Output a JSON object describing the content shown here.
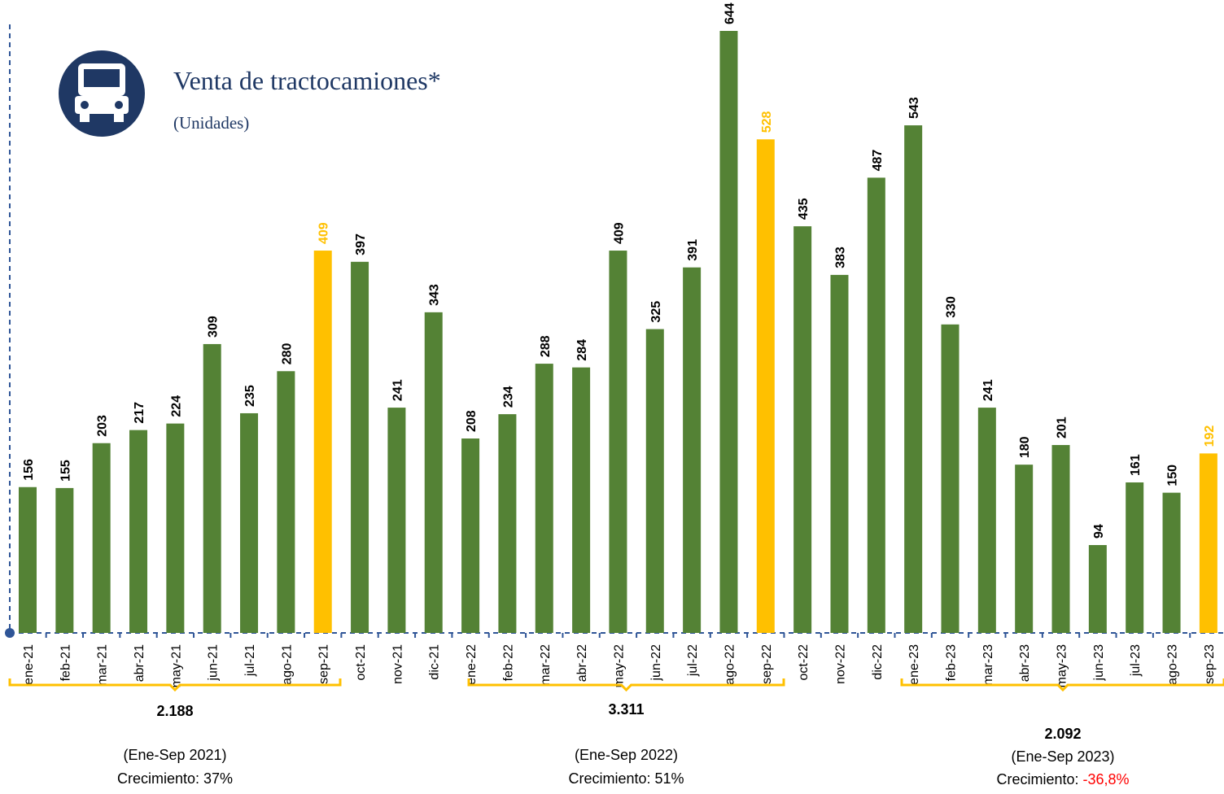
{
  "chart_data": {
    "type": "bar",
    "title": "Venta de tractocamiones*",
    "subtitle": "(Unidades)",
    "categories": [
      "ene-21",
      "feb-21",
      "mar-21",
      "abr-21",
      "may-21",
      "jun-21",
      "jul-21",
      "ago-21",
      "sep-21",
      "oct-21",
      "nov-21",
      "dic-21",
      "ene-22",
      "feb-22",
      "mar-22",
      "abr-22",
      "may-22",
      "jun-22",
      "jul-22",
      "ago-22",
      "sep-22",
      "oct-22",
      "nov-22",
      "dic-22",
      "ene-23",
      "feb-23",
      "mar-23",
      "abr-23",
      "may-23",
      "jun-23",
      "jul-23",
      "ago-23",
      "sep-23"
    ],
    "values": [
      156,
      155,
      203,
      217,
      224,
      309,
      235,
      280,
      409,
      397,
      241,
      343,
      208,
      234,
      288,
      284,
      409,
      325,
      391,
      644,
      528,
      435,
      383,
      487,
      543,
      330,
      241,
      180,
      201,
      94,
      161,
      150,
      192
    ],
    "color": "#548235",
    "colors": [
      "#548235",
      "#548235",
      "#548235",
      "#548235",
      "#548235",
      "#548235",
      "#548235",
      "#548235",
      "#ffc000",
      "#548235",
      "#548235",
      "#548235",
      "#548235",
      "#548235",
      "#548235",
      "#548235",
      "#548235",
      "#548235",
      "#548235",
      "#548235",
      "#ffc000",
      "#548235",
      "#548235",
      "#548235",
      "#548235",
      "#548235",
      "#548235",
      "#548235",
      "#548235",
      "#548235",
      "#548235",
      "#548235",
      "#ffc000"
    ],
    "summaries": [
      {
        "total": "2.188",
        "period": "(Ene-Sep 2021)",
        "growth_label": "Crecimiento:",
        "growth": "37%"
      },
      {
        "total": "3.311",
        "period": "(Ene-Sep 2022)",
        "growth_label": "Crecimiento:",
        "growth": "51%"
      },
      {
        "total": "2.092",
        "period": "(Ene-Sep 2023)",
        "growth_label": "Crecimiento:",
        "growth": "-36,8%",
        "growth_color": "#ff0000"
      }
    ]
  }
}
